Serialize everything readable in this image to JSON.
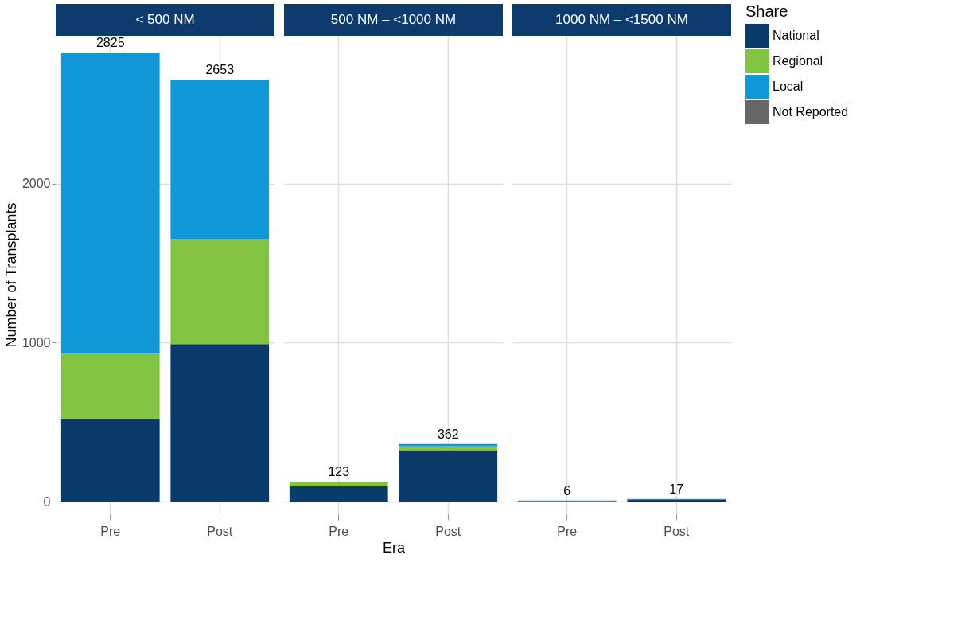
{
  "chart_data": [
    {
      "type": "bar",
      "title": "< 500 NM",
      "ylabel": "Number of Transplants",
      "categories": [
        "Pre",
        "Post"
      ],
      "stacked": true,
      "legend": "right",
      "legend_title": "Share",
      "ylim": [
        -75,
        2930
      ],
      "yticks": [
        0,
        1000,
        2000
      ],
      "grid": true,
      "totals": [
        "2825",
        "2653"
      ],
      "series": [
        {
          "name": "National",
          "color": "#0b3b6b",
          "values": [
            522,
            990
          ]
        },
        {
          "name": "Regional",
          "color": "#82c341",
          "values": [
            408,
            660
          ]
        },
        {
          "name": "Local",
          "color": "#1098d8",
          "values": [
            1895,
            1003
          ]
        },
        {
          "name": "Not Reported",
          "color": "#666666",
          "values": [
            null,
            null
          ]
        }
      ]
    },
    {
      "type": "bar",
      "title": "500 NM – <1000 NM",
      "xlabel": "Era",
      "categories": [
        "Pre",
        "Post"
      ],
      "stacked": true,
      "ylim": [
        -75,
        2930
      ],
      "yticks": [
        0,
        1000,
        2000
      ],
      "grid": true,
      "tick_labels": "x",
      "totals": [
        "123",
        "362"
      ],
      "series": [
        {
          "name": "National",
          "color": "#0b3b6b",
          "values": [
            95,
            323
          ]
        },
        {
          "name": "Regional",
          "color": "#82c341",
          "values": [
            25,
            25
          ]
        },
        {
          "name": "Local",
          "color": "#1098d8",
          "values": [
            3,
            14
          ]
        }
      ]
    },
    {
      "type": "bar",
      "title": "1000 NM – <1500 NM",
      "categories": [
        "Pre",
        "Post"
      ],
      "stacked": true,
      "ylim": [
        -75,
        2930
      ],
      "yticks": [
        0,
        1000,
        2000
      ],
      "grid": true,
      "tick_labels": "x",
      "totals": [
        "6",
        "17"
      ],
      "series": [
        {
          "name": "National",
          "color": "#0b3b6b",
          "values": [
            null,
            10
          ]
        },
        {
          "name": "Regional",
          "color": "#82c341",
          "values": [
            null,
            null
          ]
        },
        {
          "name": "Local",
          "color": "#1098d8",
          "values": [
            6,
            7
          ]
        }
      ]
    }
  ]
}
